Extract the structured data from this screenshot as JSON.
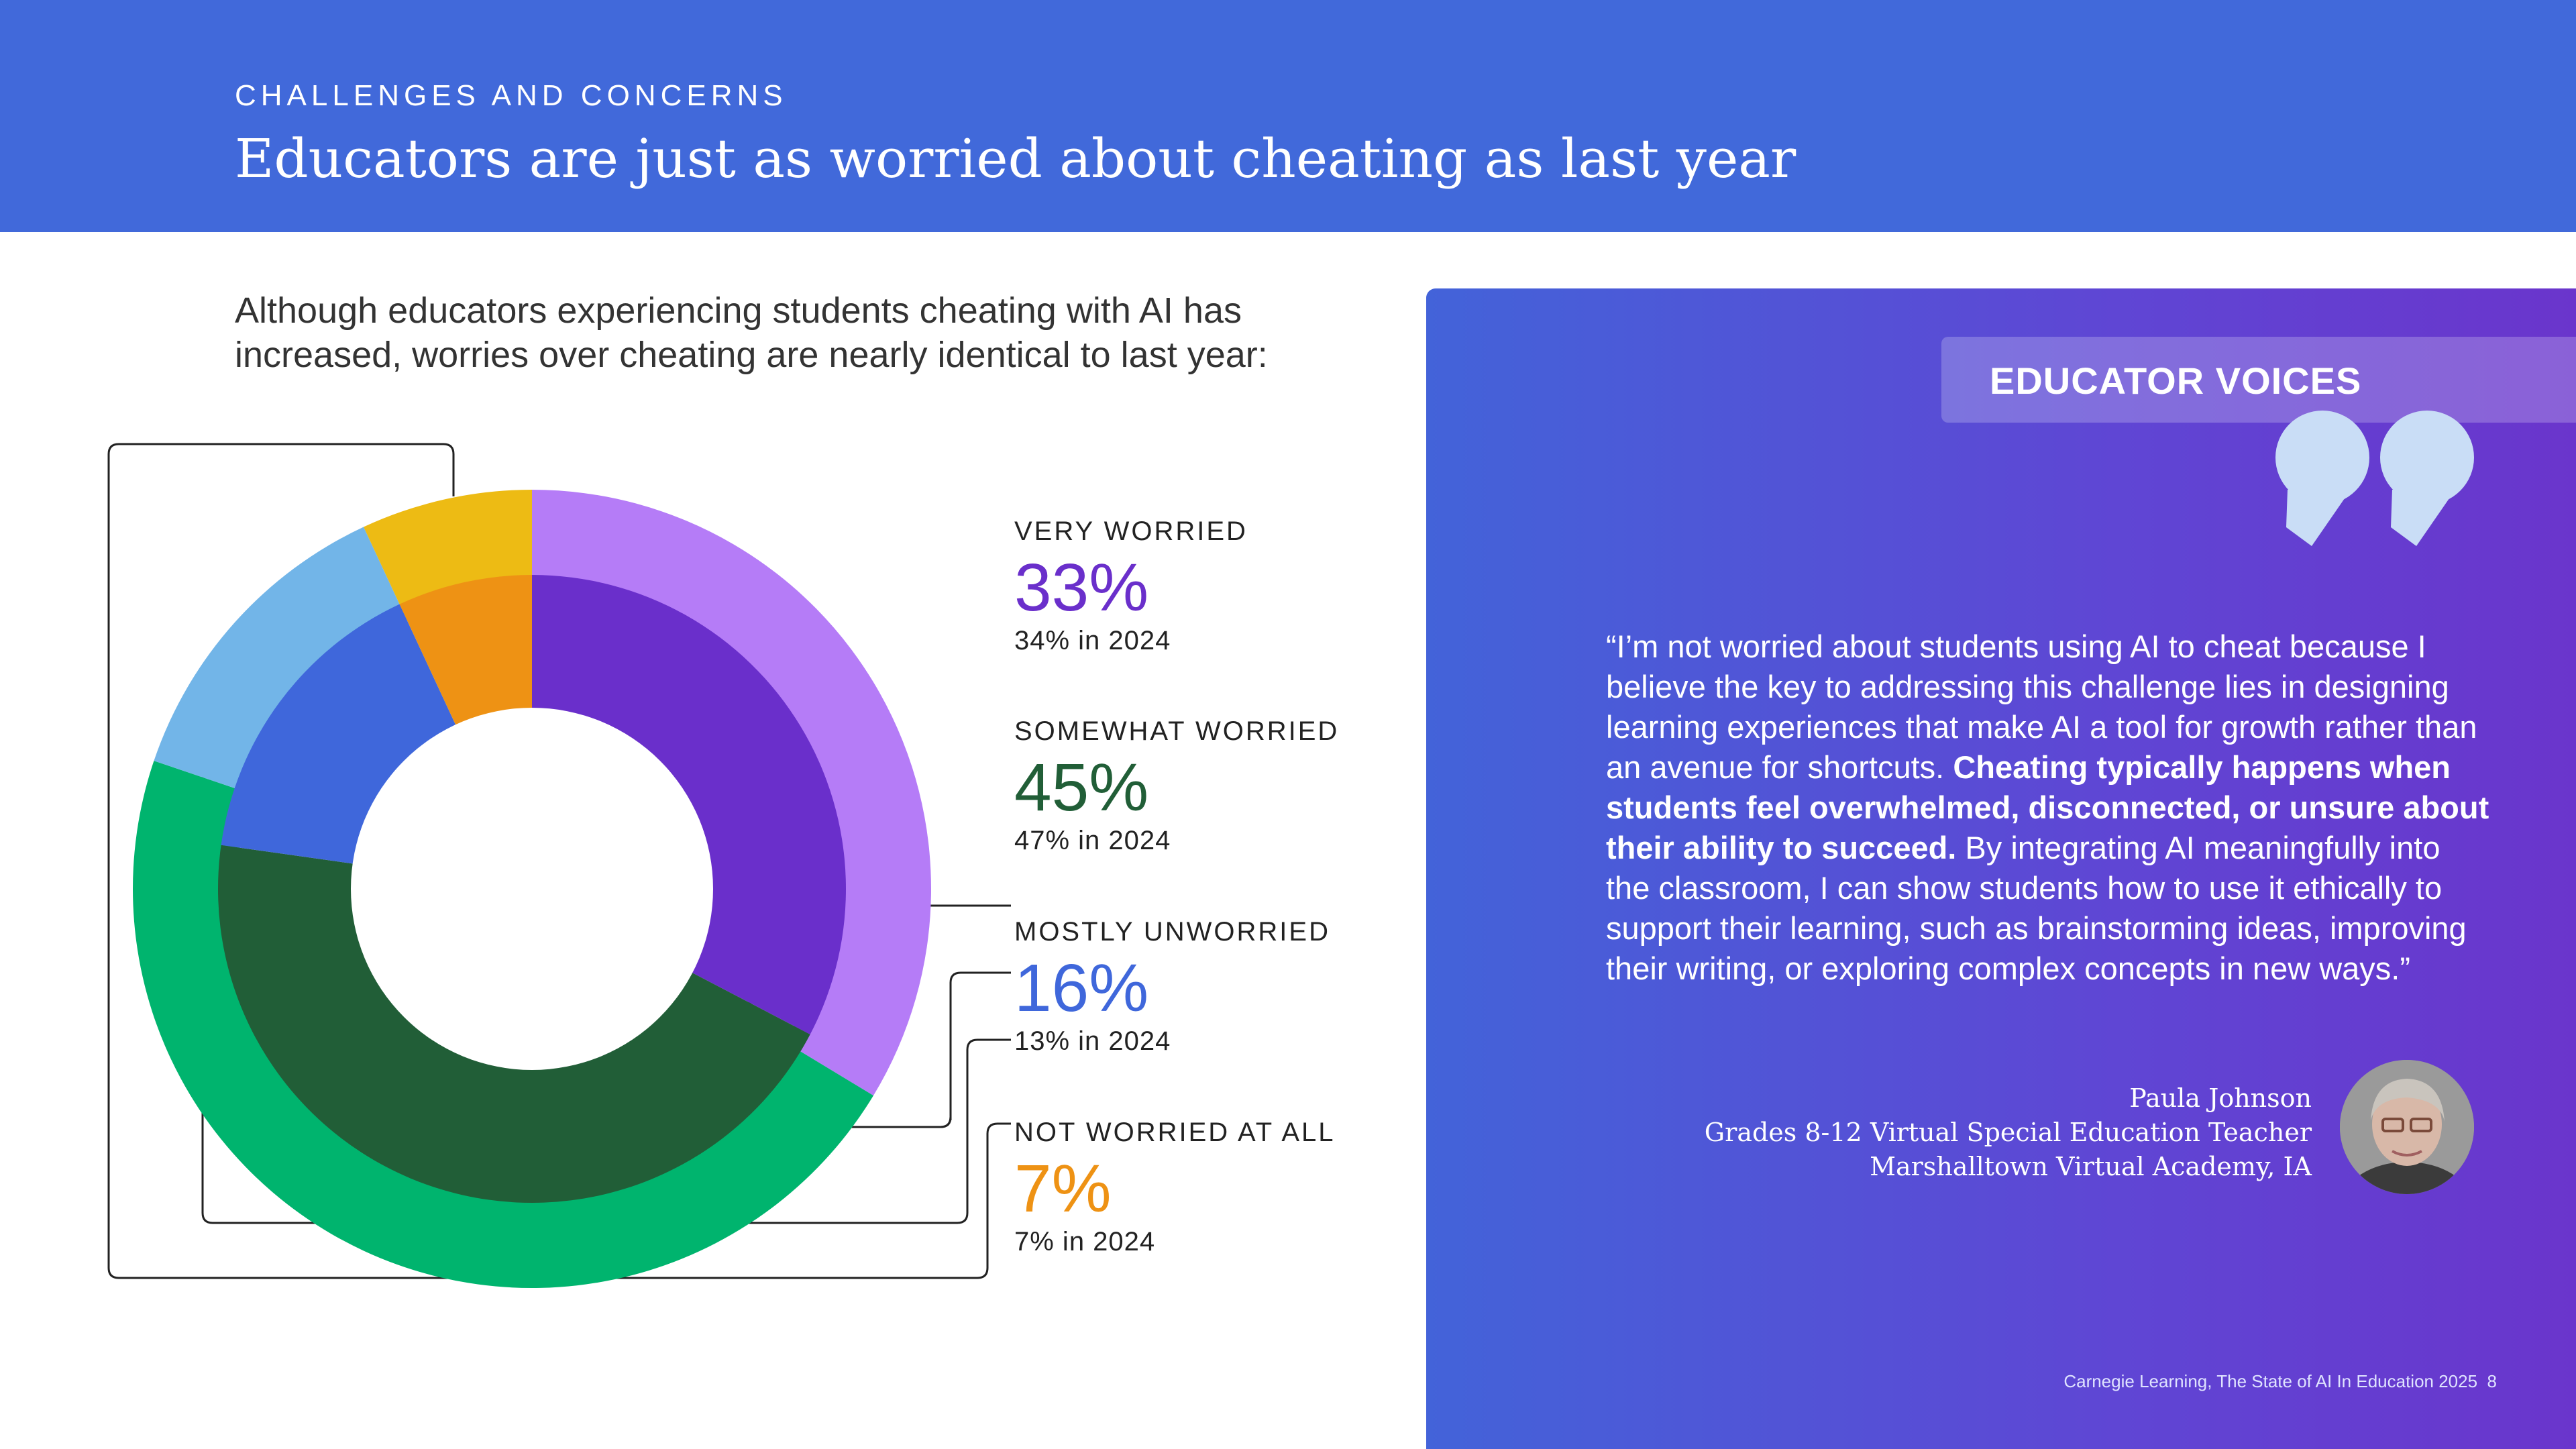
{
  "header": {
    "kicker": "CHALLENGES AND CONCERNS",
    "title": "Educators are just as worried about cheating as last year"
  },
  "intro": "Although educators experiencing students cheating with AI has increased, worries over cheating are nearly identical to last year:",
  "chart_data": {
    "type": "donut",
    "categories": [
      "VERY WORRIED",
      "SOMEWHAT WORRIED",
      "MOSTLY UNWORRIED",
      "NOT WORRIED AT ALL"
    ],
    "series": [
      {
        "values": [
          34,
          47,
          13,
          7
        ],
        "ring": "outer"
      },
      {
        "values": [
          33,
          45,
          16,
          7
        ],
        "ring": "inner"
      }
    ],
    "colors_current": [
      "#6A2FCB",
      "#215E37",
      "#3F67DB",
      "#EE9214"
    ],
    "colors_previous": [
      "#B57CF7",
      "#00B46E",
      "#72B5E8",
      "#EDBB14"
    ],
    "legend": [
      {
        "label": "VERY WORRIED",
        "value": "33%",
        "previous": "34% in 2024",
        "color": "#6A2FCB"
      },
      {
        "label": "SOMEWHAT WORRIED",
        "value": "45%",
        "previous": "47% in 2024",
        "color": "#215E37"
      },
      {
        "label": "MOSTLY UNWORRIED",
        "value": "16%",
        "previous": "13% in 2024",
        "color": "#3F67DB"
      },
      {
        "label": "NOT WORRIED AT ALL",
        "value": "7%",
        "previous": "7% in 2024",
        "color": "#EE9214"
      }
    ]
  },
  "panel": {
    "badge": "EDUCATOR VOICES",
    "quote_icon": "quote-icon",
    "quote_part1": "“I’m not worried about students using AI to cheat because I believe the key to addressing this challenge lies in designing learning experiences that make AI a tool for growth rather than an avenue for shortcuts. ",
    "quote_bold": "Cheating typically happens when students feel overwhelmed, disconnected, or unsure about their ability to succeed.",
    "quote_part2": " By integrating AI meaningfully into the classroom, I can show students how to use it ethically to support their learning, such as brainstorming ideas, improving their writing, or exploring complex concepts in new ways.”",
    "name": "Paula Johnson",
    "role": "Grades 8-12 Virtual Special Education Teacher",
    "school": "Marshalltown Virtual Academy, IA",
    "avatar_icon": "avatar-photo"
  },
  "footer": {
    "citation": "Carnegie Learning, The State of AI In Education 2025",
    "page": "8"
  }
}
